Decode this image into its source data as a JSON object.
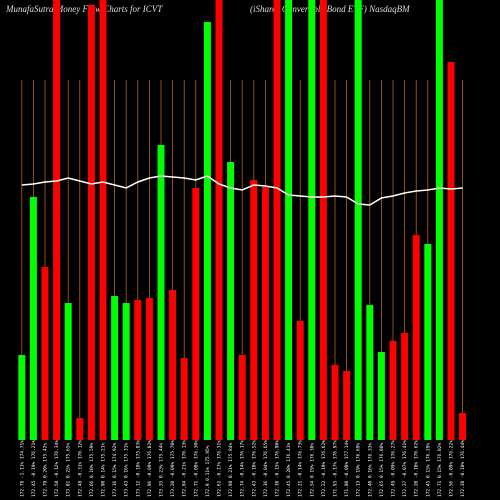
{
  "chart_data": {
    "type": "bar",
    "title": "MunafaSutra Money Flow Charts for ICVT",
    "subtitle": "(iShares Convertible Bond ETF) NasdaqBM",
    "ylim": [
      0,
      440
    ],
    "categories": [
      "172.78 -1.11% 174.71%",
      "172.45 -0.19% 176.21%",
      "172.79 0.20% 175.42%",
      "172.58 -0.12% 176.34%",
      "173.01 0.25% 175.65%",
      "172.48 -0.31% 176.12%",
      "172.66 0.10% 175.59%",
      "172.90 0.14% 175.21%",
      "173.16 0.15% 174.92%",
      "173.43 0.16% 175.31%",
      "173.12 -0.18% 175.83%",
      "172.96 -0.09% 176.02%",
      "173.35 0.23% 175.44%",
      "173.20 -0.09% 175.70%",
      "172.84 -0.21% 176.13%",
      "172.71 -0.08% 176.30%",
      "172.9 0.11% 175.95%",
      "172.61 -0.17% 176.31%",
      "172.98 0.21% 175.84%",
      "172.74 -0.14% 176.17%",
      "172.43 -0.18% 176.52%",
      "172.36 -0.04% 176.65%",
      "172.10 -0.15% 176.90%",
      "172.45 0.20% 176.41%",
      "172.21 -0.14% 176.73%",
      "172.54 0.19% 176.30%",
      "172.22 -0.19% 176.62%",
      "171.93 -0.17% 176.97%",
      "171.80 -0.08% 177.14%",
      "172.13 0.19% 176.69%",
      "172.40 0.16% 176.33%",
      "172.65 0.15% 176.08%",
      "172.49 -0.09% 176.27%",
      "172.37 -0.07% 176.41%",
      "172.20 -0.10% 176.62%",
      "172.45 0.15% 176.29%",
      "172.71 0.15% 176.02%",
      "172.56 -0.09% 176.22%",
      "172.38 -0.10% 176.44%"
    ],
    "values": [
      85,
      243,
      173,
      440,
      137,
      22,
      435,
      440,
      144,
      137,
      140,
      142,
      295,
      150,
      82,
      252,
      418,
      440,
      278,
      85,
      260,
      253,
      440,
      440,
      119,
      440,
      440,
      75,
      69,
      440,
      135,
      88,
      99,
      107,
      205,
      196,
      440,
      378,
      27
    ],
    "colors": [
      "#00ff00",
      "#00ff00",
      "#ff0000",
      "#ff0000",
      "#00ff00",
      "#ff0000",
      "#ff0000",
      "#ff0000",
      "#00ff00",
      "#00ff00",
      "#ff0000",
      "#ff0000",
      "#00ff00",
      "#ff0000",
      "#ff0000",
      "#ff0000",
      "#00ff00",
      "#ff0000",
      "#00ff00",
      "#ff0000",
      "#ff0000",
      "#ff0000",
      "#ff0000",
      "#00ff00",
      "#ff0000",
      "#00ff00",
      "#ff0000",
      "#ff0000",
      "#ff0000",
      "#00ff00",
      "#00ff00",
      "#00ff00",
      "#ff0000",
      "#ff0000",
      "#ff0000",
      "#00ff00",
      "#00ff00",
      "#ff0000",
      "#ff0000"
    ],
    "line": {
      "color": "#ffffff",
      "values": [
        255,
        256,
        258,
        259,
        262,
        259,
        256,
        258,
        255,
        252,
        258,
        262,
        264,
        263,
        262,
        260,
        264,
        256,
        252,
        250,
        255,
        254,
        252,
        245,
        244,
        243,
        243,
        244,
        243,
        236,
        235,
        242,
        244,
        247,
        249,
        250,
        252,
        251,
        252
      ]
    },
    "guide_color": "#b5651d"
  }
}
